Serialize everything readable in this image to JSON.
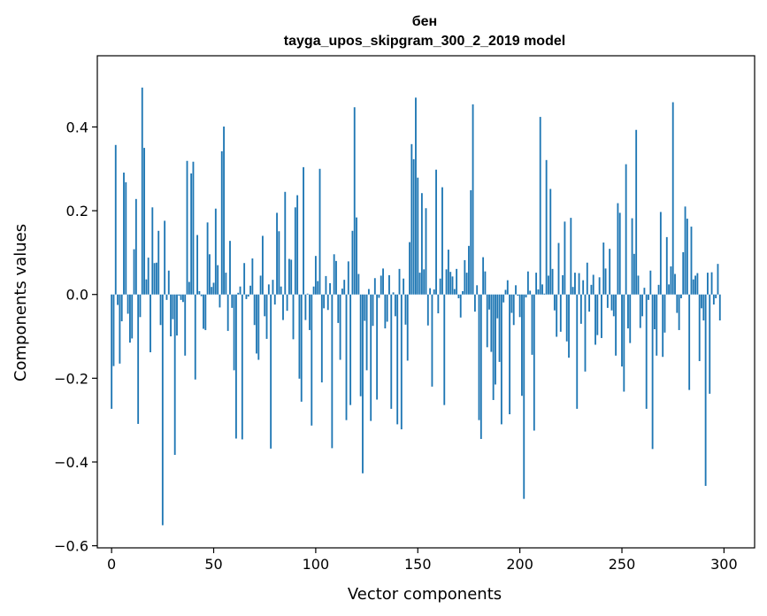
{
  "chart_data": {
    "type": "bar",
    "title": "бен",
    "subtitle": "tayga_upos_skipgram_300_2_2019 model",
    "xlabel": "Vector components",
    "ylabel": "Components values",
    "xlim": [
      -7,
      315
    ],
    "ylim": [
      -0.605,
      0.57
    ],
    "xticks": [
      0,
      50,
      100,
      150,
      200,
      250,
      300
    ],
    "yticks": [
      -0.6,
      -0.4,
      -0.2,
      0.0,
      0.2,
      0.4
    ],
    "ytick_labels": [
      "−0.6",
      "−0.4",
      "−0.2",
      "0.0",
      "0.2",
      "0.4"
    ],
    "grid": false,
    "legend": "none",
    "bar_color": "#1f77b4",
    "values": [
      -0.273,
      -0.171,
      0.357,
      -0.025,
      -0.165,
      -0.064,
      0.291,
      0.268,
      -0.046,
      -0.115,
      -0.105,
      0.108,
      0.228,
      -0.309,
      -0.054,
      0.494,
      0.35,
      0.036,
      0.088,
      -0.138,
      0.208,
      0.075,
      0.076,
      0.152,
      -0.073,
      -0.551,
      0.176,
      -0.013,
      0.057,
      -0.1,
      -0.059,
      -0.383,
      -0.098,
      -0.003,
      -0.013,
      -0.018,
      -0.146,
      0.319,
      0.03,
      0.289,
      0.317,
      -0.203,
      0.142,
      0.008,
      -0.004,
      -0.082,
      -0.085,
      0.172,
      0.096,
      0.018,
      0.028,
      0.205,
      0.07,
      -0.031,
      0.342,
      0.401,
      0.052,
      -0.087,
      0.128,
      -0.032,
      -0.181,
      -0.344,
      0.004,
      0.019,
      -0.346,
      0.075,
      -0.011,
      -0.005,
      0.021,
      0.086,
      -0.073,
      -0.141,
      -0.156,
      0.045,
      0.14,
      -0.052,
      -0.106,
      0.024,
      -0.368,
      0.035,
      -0.024,
      0.195,
      0.151,
      0.019,
      -0.061,
      0.245,
      -0.039,
      0.085,
      0.083,
      -0.107,
      0.208,
      0.237,
      -0.201,
      -0.256,
      0.304,
      -0.061,
      0.002,
      -0.085,
      -0.313,
      0.019,
      0.092,
      0.032,
      0.3,
      -0.21,
      -0.033,
      0.044,
      -0.037,
      0.027,
      -0.367,
      0.096,
      0.08,
      -0.068,
      -0.156,
      0.014,
      0.035,
      -0.3,
      0.079,
      -0.264,
      0.152,
      0.447,
      0.184,
      0.049,
      -0.243,
      -0.427,
      -0.063,
      -0.181,
      0.013,
      -0.302,
      -0.075,
      0.039,
      -0.251,
      -0.008,
      0.045,
      0.062,
      -0.081,
      -0.065,
      0.046,
      -0.273,
      0.005,
      -0.052,
      -0.31,
      0.061,
      -0.322,
      0.038,
      -0.072,
      -0.158,
      0.125,
      0.359,
      0.323,
      0.47,
      0.279,
      0.052,
      0.242,
      0.06,
      0.206,
      -0.074,
      0.015,
      -0.22,
      0.012,
      0.298,
      -0.045,
      0.038,
      0.256,
      -0.264,
      0.06,
      0.107,
      0.054,
      0.043,
      0.013,
      0.061,
      -0.009,
      -0.055,
      0.008,
      0.082,
      0.052,
      0.116,
      0.249,
      0.454,
      -0.041,
      0.022,
      -0.3,
      -0.345,
      0.089,
      0.055,
      -0.126,
      -0.036,
      -0.137,
      -0.252,
      -0.215,
      -0.057,
      -0.161,
      -0.31,
      -0.019,
      0.011,
      0.034,
      -0.286,
      -0.044,
      -0.073,
      0.022,
      -0.003,
      -0.054,
      -0.242,
      -0.488,
      -0.007,
      0.055,
      0.009,
      -0.144,
      -0.325,
      0.052,
      0.012,
      0.424,
      0.024,
      0.002,
      0.321,
      0.045,
      0.252,
      0.061,
      -0.038,
      -0.101,
      0.123,
      -0.089,
      0.046,
      0.174,
      -0.112,
      -0.151,
      0.183,
      0.018,
      0.052,
      -0.273,
      0.051,
      -0.07,
      0.034,
      -0.184,
      0.076,
      -0.041,
      0.023,
      0.047,
      -0.12,
      -0.097,
      0.041,
      -0.104,
      0.124,
      0.062,
      -0.032,
      0.109,
      -0.038,
      -0.052,
      -0.146,
      0.218,
      0.195,
      -0.172,
      -0.232,
      0.311,
      -0.081,
      -0.116,
      0.182,
      0.097,
      0.393,
      0.045,
      -0.08,
      -0.052,
      0.016,
      -0.273,
      -0.013,
      0.057,
      -0.369,
      -0.083,
      -0.146,
      0.023,
      0.197,
      -0.149,
      -0.091,
      0.137,
      0.024,
      0.067,
      0.459,
      0.049,
      -0.044,
      -0.085,
      -0.009,
      0.101,
      0.21,
      0.181,
      -0.228,
      0.162,
      0.036,
      0.045,
      0.051,
      -0.159,
      -0.033,
      -0.062,
      -0.457,
      0.052,
      -0.237,
      0.053,
      -0.024,
      -0.009,
      0.073,
      -0.062
    ]
  }
}
